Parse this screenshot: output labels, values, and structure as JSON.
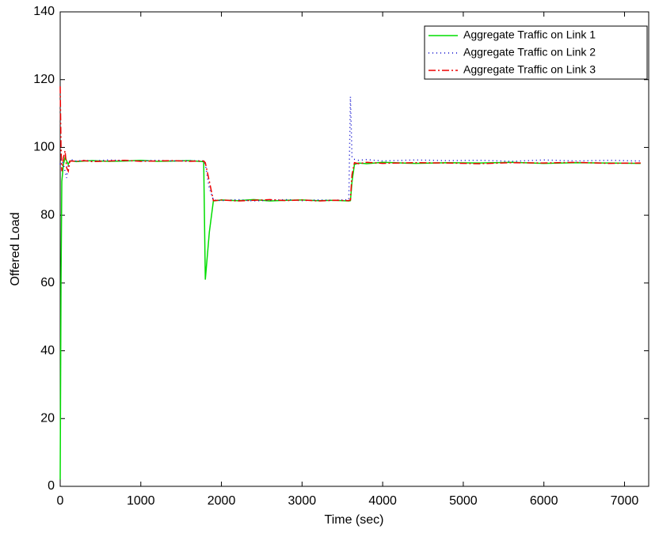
{
  "chart_data": {
    "type": "line",
    "xlabel": "Time (sec)",
    "ylabel": "Offered Load",
    "x": [
      0,
      10,
      20,
      40,
      60,
      80,
      100,
      120,
      150,
      200,
      300,
      400,
      600,
      800,
      1000,
      1200,
      1400,
      1600,
      1780,
      1800,
      1850,
      1900,
      2000,
      2200,
      2400,
      2600,
      2800,
      3000,
      3200,
      3400,
      3580,
      3600,
      3620,
      3650,
      3700,
      3800,
      4000,
      4400,
      4800,
      5200,
      5600,
      6000,
      6400,
      6800,
      7200
    ],
    "series": [
      {
        "name": "Aggregate Traffic on Link 1",
        "color": "#00dd00",
        "dash": "none",
        "values": [
          2,
          60,
          90,
          95,
          97,
          96,
          95,
          96,
          96,
          95.8,
          96,
          96.1,
          95.9,
          96,
          96.2,
          95.9,
          96,
          96.1,
          95.8,
          61,
          75,
          84.2,
          84.5,
          84.3,
          84.6,
          84.2,
          84.4,
          84.5,
          84.3,
          84.4,
          84.2,
          84.3,
          90,
          95,
          95.4,
          95.2,
          95.6,
          95.3,
          95.5,
          95.4,
          95.6,
          95.3,
          95.5,
          95.4,
          95.3
        ]
      },
      {
        "name": "Aggregate Traffic on Link 2",
        "color": "#0000cc",
        "dash": "1,4",
        "values": [
          95,
          97,
          96,
          95,
          93,
          91,
          95,
          96,
          96.3,
          96,
          96.2,
          96,
          96.3,
          96.1,
          96,
          96.2,
          96,
          96.1,
          96,
          95,
          88,
          84.5,
          84.3,
          84.6,
          84.2,
          84.4,
          84.6,
          84.3,
          84.5,
          84.4,
          84.6,
          115,
          97,
          96.5,
          96.2,
          96.4,
          96,
          96.3,
          96.1,
          96.2,
          95.9,
          96.3,
          96,
          96.2,
          96
        ]
      },
      {
        "name": "Aggregate Traffic on Link 3",
        "color": "#ee0000",
        "dash": "9,3,2,3",
        "values": [
          118,
          100,
          93,
          97,
          99,
          94,
          93,
          96,
          96,
          95.9,
          96.1,
          95.8,
          96,
          96.2,
          95.9,
          96,
          96.1,
          95.9,
          96,
          95.5,
          90,
          84.3,
          84.5,
          84.2,
          84.4,
          84.6,
          84.3,
          84.5,
          84.2,
          84.4,
          84.3,
          84.5,
          92,
          95.5,
          95.2,
          95.6,
          95.3,
          95.5,
          95.4,
          95.2,
          95.5,
          95.4,
          95.6,
          95.3,
          95.4
        ]
      }
    ],
    "xlim": [
      0,
      7300
    ],
    "ylim": [
      0,
      140
    ],
    "xticks": [
      0,
      1000,
      2000,
      3000,
      4000,
      5000,
      6000,
      7000
    ],
    "yticks": [
      0,
      20,
      40,
      60,
      80,
      100,
      120,
      140
    ],
    "legend": "upper right"
  }
}
